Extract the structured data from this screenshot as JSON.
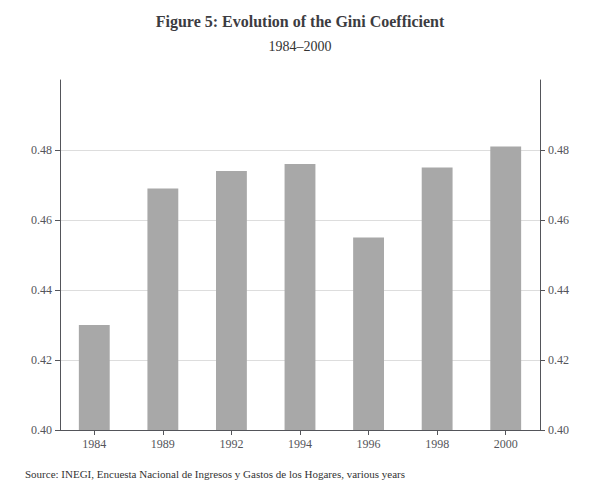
{
  "chart_data": {
    "type": "bar",
    "title": "Figure 5: Evolution of the Gini Coefficient",
    "subtitle": "1984–2000",
    "annotations": [
      "Source: INEGI, Encuesta Nacional de Ingresos y Gastos de los Hogares, various years"
    ],
    "categories": [
      "1984",
      "1989",
      "1992",
      "1994",
      "1996",
      "1998",
      "2000"
    ],
    "values": [
      0.43,
      0.469,
      0.474,
      0.476,
      0.455,
      0.475,
      0.481
    ],
    "color": "#a8a8a8",
    "ylim": [
      0.4,
      0.5
    ],
    "yticks": [
      {
        "value": 0.4,
        "label": "0.40"
      },
      0.42,
      0.44,
      0.46,
      0.48
    ],
    "y2lim": [
      0.4,
      0.5
    ],
    "y2ticks": [
      {
        "value": 0.4,
        "label": "0.40"
      },
      0.42,
      0.44,
      0.46,
      0.48
    ],
    "grid": true
  }
}
